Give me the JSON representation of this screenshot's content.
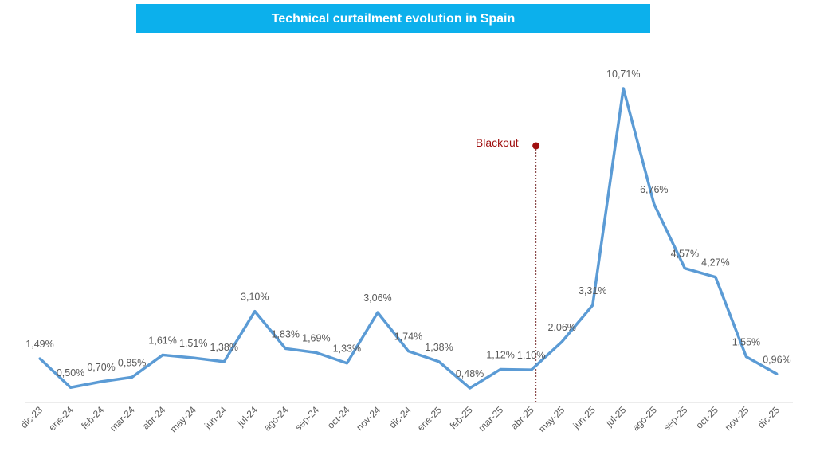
{
  "chart_data": {
    "type": "line",
    "title": "Technical curtailment evolution in Spain",
    "categories": [
      "dic-23",
      "ene-24",
      "feb-24",
      "mar-24",
      "abr-24",
      "may-24",
      "jun-24",
      "jul-24",
      "ago-24",
      "sep-24",
      "oct-24",
      "nov-24",
      "dic-24",
      "ene-25",
      "feb-25",
      "mar-25",
      "abr-25",
      "may-25",
      "jun-25",
      "jul-25",
      "ago-25",
      "sep-25",
      "oct-25",
      "nov-25",
      "dic-25"
    ],
    "values": [
      1.49,
      0.5,
      0.7,
      0.85,
      1.61,
      1.51,
      1.38,
      3.1,
      1.83,
      1.69,
      1.33,
      3.06,
      1.74,
      1.38,
      0.48,
      1.12,
      1.1,
      2.06,
      3.31,
      10.71,
      6.76,
      4.57,
      4.27,
      1.55,
      0.96
    ],
    "data_labels": [
      "1,49%",
      "0,50%",
      "0,70%",
      "0,85%",
      "1,61%",
      "1,51%",
      "1,38%",
      "3,10%",
      "1,83%",
      "1,69%",
      "1,33%",
      "3,06%",
      "1,74%",
      "1,38%",
      "0,48%",
      "1,12%",
      "1,10%",
      "2,06%",
      "3,31%",
      "10,71%",
      "6,76%",
      "4,57%",
      "4,27%",
      "1,55%",
      "0,96%"
    ],
    "annotation": {
      "label": "Blackout",
      "position_between": [
        "abr-25",
        "may-25"
      ]
    },
    "xlabel": "",
    "ylabel": "",
    "ylim": [
      0,
      11
    ],
    "grid": false,
    "legend": "none",
    "colors": {
      "line": "#5b9bd5",
      "annotation": "#a01010",
      "title_bar": "#0cb0ec"
    }
  }
}
